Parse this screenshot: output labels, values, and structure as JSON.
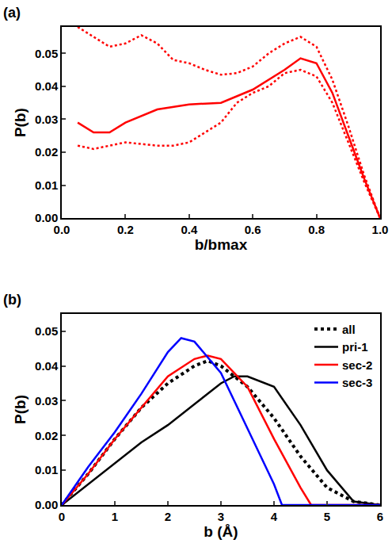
{
  "chart_data": [
    {
      "type": "line",
      "title": "(a)",
      "x_label": "b/bmax",
      "y_label": "P(b)",
      "xlim": [
        0,
        1
      ],
      "xticks": [
        {
          "value": 0,
          "label": "0.0"
        },
        {
          "value": 0.2,
          "label": "0.2"
        },
        {
          "value": 0.4,
          "label": "0.4"
        },
        {
          "value": 0.6,
          "label": "0.6"
        },
        {
          "value": 0.8,
          "label": "0.8"
        },
        {
          "value": 1,
          "label": "1.0"
        }
      ],
      "ylim": [
        0,
        0.058
      ],
      "yticks": [
        {
          "value": 0,
          "label": "0.00"
        },
        {
          "value": 0.01,
          "label": "0.01"
        },
        {
          "value": 0.02,
          "label": "0.02"
        },
        {
          "value": 0.03,
          "label": "0.03"
        },
        {
          "value": 0.04,
          "label": "0.04"
        },
        {
          "value": 0.05,
          "label": "0.05"
        }
      ],
      "series": [
        {
          "color": "#ff0000",
          "line_style": "solid",
          "x": [
            0.05,
            0.1,
            0.15,
            0.2,
            0.3,
            0.4,
            0.5,
            0.6,
            0.7,
            0.75,
            0.8,
            0.85,
            0.9,
            0.95,
            1.0
          ],
          "values": [
            0.029,
            0.026,
            0.026,
            0.029,
            0.033,
            0.0345,
            0.035,
            0.039,
            0.045,
            0.0485,
            0.047,
            0.038,
            0.025,
            0.012,
            0.0
          ]
        },
        {
          "color": "#ff0000",
          "line_style": "dotted",
          "x": [
            0.05,
            0.1,
            0.15,
            0.2,
            0.25,
            0.3,
            0.35,
            0.4,
            0.45,
            0.5,
            0.55,
            0.6,
            0.65,
            0.7,
            0.75,
            0.8,
            0.85,
            0.9,
            0.95,
            1.0
          ],
          "values": [
            0.058,
            0.055,
            0.052,
            0.053,
            0.0555,
            0.053,
            0.048,
            0.047,
            0.045,
            0.0435,
            0.044,
            0.046,
            0.05,
            0.053,
            0.055,
            0.052,
            0.042,
            0.028,
            0.013,
            0.0
          ]
        },
        {
          "color": "#ff0000",
          "line_style": "dotted",
          "x": [
            0.05,
            0.1,
            0.15,
            0.2,
            0.3,
            0.35,
            0.4,
            0.5,
            0.55,
            0.6,
            0.65,
            0.7,
            0.75,
            0.8,
            0.85,
            0.9,
            0.95,
            1.0
          ],
          "values": [
            0.022,
            0.021,
            0.022,
            0.023,
            0.022,
            0.022,
            0.023,
            0.029,
            0.035,
            0.038,
            0.04,
            0.044,
            0.045,
            0.043,
            0.035,
            0.023,
            0.011,
            0.0
          ]
        }
      ]
    },
    {
      "type": "line",
      "title": "(b)",
      "x_label": "b (Å)",
      "y_label": "P(b)",
      "xlim": [
        0,
        6
      ],
      "xticks": [
        0,
        1,
        2,
        3,
        4,
        5,
        6
      ],
      "ylim": [
        0,
        0.055
      ],
      "yticks": [
        {
          "value": 0,
          "label": "0.00"
        },
        {
          "value": 0.01,
          "label": "0.01"
        },
        {
          "value": 0.02,
          "label": "0.02"
        },
        {
          "value": 0.03,
          "label": "0.03"
        },
        {
          "value": 0.04,
          "label": "0.04"
        },
        {
          "value": 0.05,
          "label": "0.05"
        }
      ],
      "legend": "upper right",
      "series": [
        {
          "name": "all",
          "color": "#000000",
          "line_style": "dotted",
          "x": [
            0,
            0.5,
            1,
            1.5,
            2,
            2.5,
            2.75,
            3,
            3.5,
            4,
            4.5,
            5,
            5.5,
            6
          ],
          "values": [
            0,
            0.009,
            0.019,
            0.028,
            0.035,
            0.04,
            0.0415,
            0.04,
            0.034,
            0.025,
            0.014,
            0.005,
            0.001,
            0
          ]
        },
        {
          "name": "pri-1",
          "color": "#000000",
          "line_style": "solid",
          "x": [
            0,
            0.5,
            1,
            1.5,
            2,
            2.5,
            3,
            3.25,
            3.5,
            4,
            4.5,
            5,
            5.5,
            6
          ],
          "values": [
            0,
            0.006,
            0.012,
            0.018,
            0.023,
            0.029,
            0.035,
            0.037,
            0.037,
            0.034,
            0.023,
            0.01,
            0.001,
            0
          ]
        },
        {
          "name": "sec-2",
          "color": "#ff0000",
          "line_style": "solid",
          "x": [
            0,
            0.5,
            1,
            1.5,
            2,
            2.5,
            2.75,
            3,
            3.5,
            4,
            4.5,
            4.7,
            6
          ],
          "values": [
            0,
            0.009,
            0.019,
            0.028,
            0.037,
            0.042,
            0.043,
            0.042,
            0.034,
            0.019,
            0.005,
            0,
            0
          ]
        },
        {
          "name": "sec-3",
          "color": "#0000ff",
          "line_style": "solid",
          "x": [
            0,
            0.5,
            1,
            1.5,
            2,
            2.25,
            2.5,
            3,
            3.5,
            4,
            4.15,
            6
          ],
          "values": [
            0,
            0.011,
            0.021,
            0.032,
            0.044,
            0.048,
            0.047,
            0.038,
            0.022,
            0.006,
            0,
            0
          ]
        }
      ]
    }
  ]
}
